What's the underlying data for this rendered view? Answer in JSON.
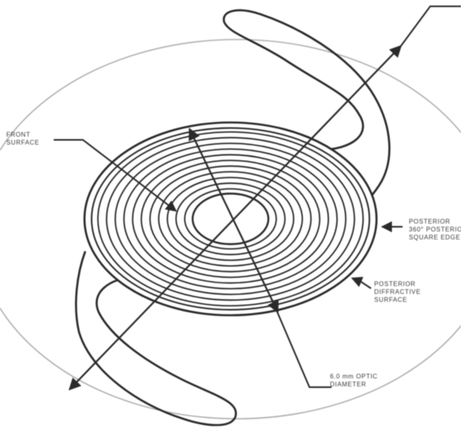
{
  "diagram": {
    "labels": {
      "front_surface": [
        "FRONT",
        "SURFACE"
      ],
      "posterior_square_edge": [
        "POSTERIOR",
        "360° POSTERIOR",
        "SQUARE EDGE"
      ],
      "posterior_diffractive_surface": [
        "POSTERIOR",
        "DIFFRACTIVE",
        "SURFACE"
      ],
      "optic_diameter": [
        "6.0 mm OPTIC",
        "DIAMETER"
      ]
    },
    "colors": {
      "stroke": "#2a2a2a",
      "outer_circle": "#b0b0b0",
      "background": "#ffffff"
    }
  }
}
